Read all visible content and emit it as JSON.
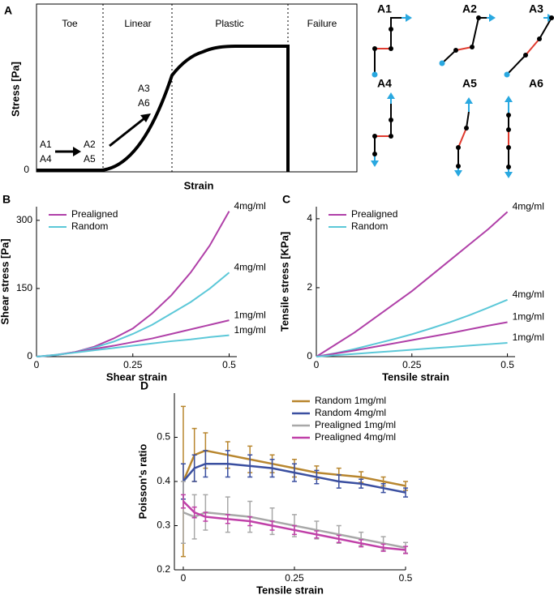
{
  "panel_a": {
    "panel": "A",
    "regions": [
      "Toe",
      "Linear",
      "Plastic",
      "Failure"
    ],
    "ylabel": "Stress [Pa]",
    "xlabel": "Strain",
    "origin_label": "0",
    "annotations": [
      "A1",
      "A4",
      "A2",
      "A5",
      "A3",
      "A6"
    ],
    "diagrams": [
      "A1",
      "A2",
      "A3",
      "A4",
      "A5",
      "A6"
    ]
  },
  "chart_data": [
    {
      "type": "line",
      "panel": "B",
      "xlabel": "Shear strain",
      "ylabel": "Shear stress [Pa]",
      "legend": "top-left",
      "x": [
        0,
        0.05,
        0.1,
        0.15,
        0.2,
        0.25,
        0.3,
        0.35,
        0.4,
        0.45,
        0.5
      ],
      "xlim": [
        0,
        0.52
      ],
      "xticks": [
        0,
        0.25,
        0.5
      ],
      "ylim": [
        0,
        330
      ],
      "yticks": [
        0,
        150,
        300
      ],
      "series": [
        {
          "name": "Prealigned",
          "label": "4mg/ml",
          "color": "#b040a8",
          "values": [
            0,
            3,
            10,
            22,
            40,
            62,
            95,
            135,
            185,
            245,
            320
          ]
        },
        {
          "name": "Random",
          "label": "4mg/ml",
          "color": "#5cc8d8",
          "values": [
            0,
            3,
            10,
            20,
            33,
            50,
            70,
            95,
            120,
            150,
            185
          ]
        },
        {
          "name": "Prealigned",
          "label": "1mg/ml",
          "color": "#b040a8",
          "values": [
            0,
            4,
            10,
            17,
            24,
            32,
            40,
            50,
            60,
            70,
            80
          ]
        },
        {
          "name": "Random",
          "label": "1mg/ml",
          "color": "#5cc8d8",
          "values": [
            0,
            4,
            9,
            14,
            19,
            24,
            29,
            34,
            38,
            43,
            47
          ]
        }
      ]
    },
    {
      "type": "line",
      "panel": "C",
      "xlabel": "Tensile strain",
      "ylabel": "Tensile stress [KPa]",
      "legend": "top-left",
      "x": [
        0,
        0.05,
        0.1,
        0.15,
        0.2,
        0.25,
        0.3,
        0.35,
        0.4,
        0.45,
        0.5
      ],
      "xlim": [
        0,
        0.52
      ],
      "xticks": [
        0,
        0.25,
        0.5
      ],
      "ylim": [
        0,
        4.35
      ],
      "yticks": [
        0,
        2,
        4
      ],
      "series": [
        {
          "name": "Prealigned",
          "label": "4mg/ml",
          "color": "#b040a8",
          "values": [
            0,
            0.35,
            0.7,
            1.1,
            1.5,
            1.9,
            2.35,
            2.8,
            3.25,
            3.7,
            4.2
          ]
        },
        {
          "name": "Random",
          "label": "4mg/ml",
          "color": "#5cc8d8",
          "values": [
            0,
            0.1,
            0.22,
            0.36,
            0.5,
            0.65,
            0.82,
            1.0,
            1.2,
            1.42,
            1.65
          ]
        },
        {
          "name": "Prealigned",
          "label": "1mg/ml",
          "color": "#b040a8",
          "values": [
            0,
            0.09,
            0.18,
            0.28,
            0.38,
            0.48,
            0.58,
            0.68,
            0.79,
            0.9,
            1.0
          ]
        },
        {
          "name": "Random",
          "label": "1mg/ml",
          "color": "#5cc8d8",
          "values": [
            0,
            0.04,
            0.08,
            0.12,
            0.16,
            0.2,
            0.24,
            0.28,
            0.32,
            0.36,
            0.4
          ]
        }
      ]
    },
    {
      "type": "line",
      "panel": "D",
      "xlabel": "Tensile strain",
      "ylabel": "Poisson's ratio",
      "legend": "top-right",
      "x": [
        0,
        0.025,
        0.05,
        0.1,
        0.15,
        0.2,
        0.25,
        0.3,
        0.35,
        0.4,
        0.45,
        0.5
      ],
      "xlim": [
        -0.02,
        0.5
      ],
      "xticks": [
        0,
        0.25,
        0.5
      ],
      "ylim": [
        0.2,
        0.6
      ],
      "yticks": [
        0.2,
        0.3,
        0.4,
        0.5
      ],
      "series": [
        {
          "name": "Random 1mg/ml",
          "color": "#b8862e",
          "values": [
            0.4,
            0.46,
            0.47,
            0.46,
            0.45,
            0.44,
            0.43,
            0.42,
            0.415,
            0.41,
            0.4,
            0.39
          ],
          "errors": [
            0.17,
            0.06,
            0.04,
            0.03,
            0.03,
            0.02,
            0.02,
            0.015,
            0.015,
            0.012,
            0.01,
            0.01
          ]
        },
        {
          "name": "Random 4mg/ml",
          "color": "#3a4fa0",
          "values": [
            0.4,
            0.43,
            0.44,
            0.44,
            0.435,
            0.43,
            0.42,
            0.41,
            0.4,
            0.395,
            0.385,
            0.375
          ],
          "errors": [
            0.04,
            0.03,
            0.03,
            0.03,
            0.025,
            0.02,
            0.02,
            0.015,
            0.015,
            0.01,
            0.01,
            0.01
          ]
        },
        {
          "name": "Prealigned 1mg/ml",
          "color": "#a8a8a8",
          "values": [
            0.33,
            0.32,
            0.33,
            0.325,
            0.32,
            0.31,
            0.3,
            0.29,
            0.28,
            0.27,
            0.26,
            0.25
          ],
          "errors": [
            0.07,
            0.05,
            0.04,
            0.04,
            0.035,
            0.03,
            0.025,
            0.02,
            0.02,
            0.015,
            0.015,
            0.012
          ]
        },
        {
          "name": "Prealigned 4mg/ml",
          "color": "#c040a8",
          "values": [
            0.355,
            0.33,
            0.32,
            0.315,
            0.31,
            0.3,
            0.29,
            0.28,
            0.27,
            0.26,
            0.25,
            0.245
          ],
          "errors": [
            0.015,
            0.012,
            0.01,
            0.01,
            0.01,
            0.01,
            0.01,
            0.008,
            0.008,
            0.008,
            0.008,
            0.008
          ]
        }
      ]
    }
  ]
}
